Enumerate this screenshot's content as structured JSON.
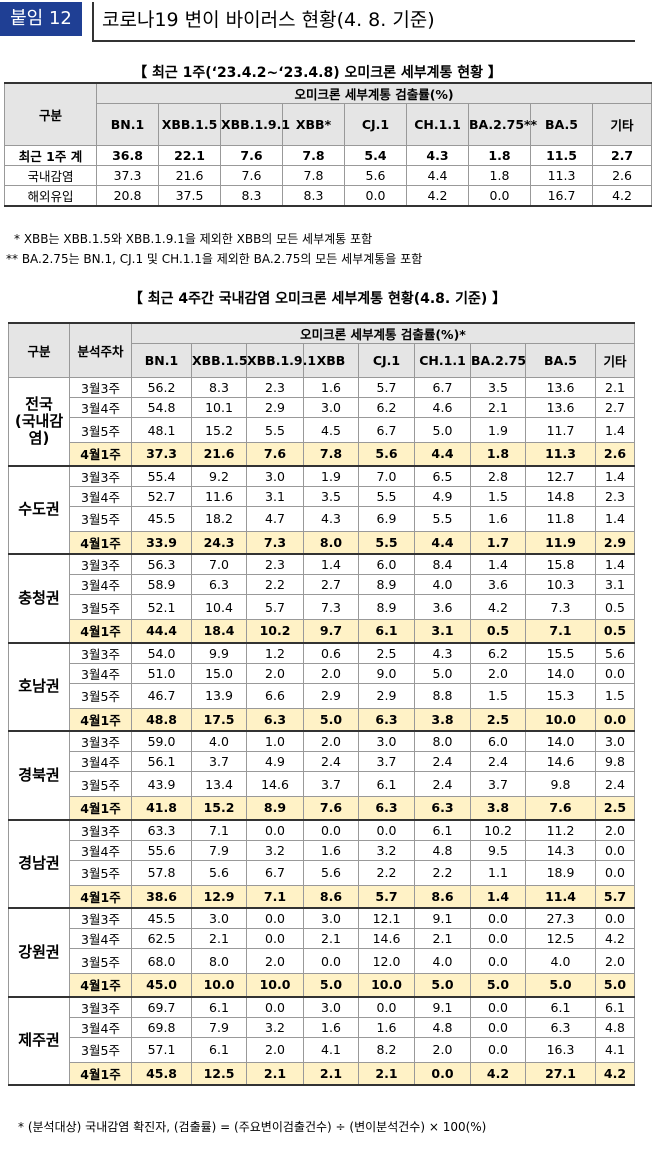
{
  "header": {
    "badge": "붙임 12",
    "title": "코로나19 변이 바이러스 현황(4. 8. 기준)"
  },
  "table1": {
    "caption": "【 최근 1주(‘23.4.2~‘23.4.8) 오미크론 세부계통 현황 】",
    "corner": "구분",
    "group_header": "오미크론 세부계통 검출률(%)",
    "columns": [
      "BN.1",
      "XBB.1.5",
      "XBB.1.9.1",
      "XBB*",
      "CJ.1",
      "CH.1.1",
      "BA.2.75**",
      "BA.5",
      "기타"
    ],
    "rows": [
      {
        "label": "최근 1주 계",
        "values": [
          "36.8",
          "22.1",
          "7.6",
          "7.8",
          "5.4",
          "4.3",
          "1.8",
          "11.5",
          "2.7"
        ]
      },
      {
        "label": "국내감염",
        "values": [
          "37.3",
          "21.6",
          "7.6",
          "7.8",
          "5.6",
          "4.4",
          "1.8",
          "11.3",
          "2.6"
        ]
      },
      {
        "label": "해외유입",
        "values": [
          "20.8",
          "37.5",
          "8.3",
          "8.3",
          "0.0",
          "4.2",
          "0.0",
          "16.7",
          "4.2"
        ]
      }
    ]
  },
  "notes": [
    " * XBB는 XBB.1.5와 XBB.1.9.1을 제외한 XBB의 모든 세부계통 포함",
    "** BA.2.75는 BN.1, CJ.1 및 CH.1.1을 제외한 BA.2.75의 모든 세부계통을 포함"
  ],
  "table2": {
    "caption": "【 최근 4주간 국내감염 오미크론 세부계통 현황(4.8. 기준) 】",
    "corner": "구분",
    "week_header": "분석주차",
    "group_header": "오미크론 세부계통 검출률(%)*",
    "columns": [
      "BN.1",
      "XBB.1.5",
      "XBB.1.9.1",
      "XBB",
      "CJ.1",
      "CH.1.1",
      "BA.2.75",
      "BA.5",
      "기타"
    ],
    "regions": [
      {
        "name": "전국\n(국내감염)",
        "weeks": [
          {
            "week": "3월3주",
            "values": [
              "56.2",
              "8.3",
              "2.3",
              "1.6",
              "5.7",
              "6.7",
              "3.5",
              "13.6",
              "2.1"
            ]
          },
          {
            "week": "3월4주",
            "values": [
              "54.8",
              "10.1",
              "2.9",
              "3.0",
              "6.2",
              "4.6",
              "2.1",
              "13.6",
              "2.7"
            ]
          },
          {
            "week": "3월5주",
            "values": [
              "48.1",
              "15.2",
              "5.5",
              "4.5",
              "6.7",
              "5.0",
              "1.9",
              "11.7",
              "1.4"
            ]
          },
          {
            "week": "4월1주",
            "values": [
              "37.3",
              "21.6",
              "7.6",
              "7.8",
              "5.6",
              "4.4",
              "1.8",
              "11.3",
              "2.6"
            ]
          }
        ]
      },
      {
        "name": "수도권",
        "weeks": [
          {
            "week": "3월3주",
            "values": [
              "55.4",
              "9.2",
              "3.0",
              "1.9",
              "7.0",
              "6.5",
              "2.8",
              "12.7",
              "1.4"
            ]
          },
          {
            "week": "3월4주",
            "values": [
              "52.7",
              "11.6",
              "3.1",
              "3.5",
              "5.5",
              "4.9",
              "1.5",
              "14.8",
              "2.3"
            ]
          },
          {
            "week": "3월5주",
            "values": [
              "45.5",
              "18.2",
              "4.7",
              "4.3",
              "6.9",
              "5.5",
              "1.6",
              "11.8",
              "1.4"
            ]
          },
          {
            "week": "4월1주",
            "values": [
              "33.9",
              "24.3",
              "7.3",
              "8.0",
              "5.5",
              "4.4",
              "1.7",
              "11.9",
              "2.9"
            ]
          }
        ]
      },
      {
        "name": "충청권",
        "weeks": [
          {
            "week": "3월3주",
            "values": [
              "56.3",
              "7.0",
              "2.3",
              "1.4",
              "6.0",
              "8.4",
              "1.4",
              "15.8",
              "1.4"
            ]
          },
          {
            "week": "3월4주",
            "values": [
              "58.9",
              "6.3",
              "2.2",
              "2.7",
              "8.9",
              "4.0",
              "3.6",
              "10.3",
              "3.1"
            ]
          },
          {
            "week": "3월5주",
            "values": [
              "52.1",
              "10.4",
              "5.7",
              "7.3",
              "8.9",
              "3.6",
              "4.2",
              "7.3",
              "0.5"
            ]
          },
          {
            "week": "4월1주",
            "values": [
              "44.4",
              "18.4",
              "10.2",
              "9.7",
              "6.1",
              "3.1",
              "0.5",
              "7.1",
              "0.5"
            ]
          }
        ]
      },
      {
        "name": "호남권",
        "weeks": [
          {
            "week": "3월3주",
            "values": [
              "54.0",
              "9.9",
              "1.2",
              "0.6",
              "2.5",
              "4.3",
              "6.2",
              "15.5",
              "5.6"
            ]
          },
          {
            "week": "3월4주",
            "values": [
              "51.0",
              "15.0",
              "2.0",
              "2.0",
              "9.0",
              "5.0",
              "2.0",
              "14.0",
              "0.0"
            ]
          },
          {
            "week": "3월5주",
            "values": [
              "46.7",
              "13.9",
              "6.6",
              "2.9",
              "2.9",
              "8.8",
              "1.5",
              "15.3",
              "1.5"
            ]
          },
          {
            "week": "4월1주",
            "values": [
              "48.8",
              "17.5",
              "6.3",
              "5.0",
              "6.3",
              "3.8",
              "2.5",
              "10.0",
              "0.0"
            ]
          }
        ]
      },
      {
        "name": "경북권",
        "weeks": [
          {
            "week": "3월3주",
            "values": [
              "59.0",
              "4.0",
              "1.0",
              "2.0",
              "3.0",
              "8.0",
              "6.0",
              "14.0",
              "3.0"
            ]
          },
          {
            "week": "3월4주",
            "values": [
              "56.1",
              "3.7",
              "4.9",
              "2.4",
              "3.7",
              "2.4",
              "2.4",
              "14.6",
              "9.8"
            ]
          },
          {
            "week": "3월5주",
            "values": [
              "43.9",
              "13.4",
              "14.6",
              "3.7",
              "6.1",
              "2.4",
              "3.7",
              "9.8",
              "2.4"
            ]
          },
          {
            "week": "4월1주",
            "values": [
              "41.8",
              "15.2",
              "8.9",
              "7.6",
              "6.3",
              "6.3",
              "3.8",
              "7.6",
              "2.5"
            ]
          }
        ]
      },
      {
        "name": "경남권",
        "weeks": [
          {
            "week": "3월3주",
            "values": [
              "63.3",
              "7.1",
              "0.0",
              "0.0",
              "0.0",
              "6.1",
              "10.2",
              "11.2",
              "2.0"
            ]
          },
          {
            "week": "3월4주",
            "values": [
              "55.6",
              "7.9",
              "3.2",
              "1.6",
              "3.2",
              "4.8",
              "9.5",
              "14.3",
              "0.0"
            ]
          },
          {
            "week": "3월5주",
            "values": [
              "57.8",
              "5.6",
              "6.7",
              "5.6",
              "2.2",
              "2.2",
              "1.1",
              "18.9",
              "0.0"
            ]
          },
          {
            "week": "4월1주",
            "values": [
              "38.6",
              "12.9",
              "7.1",
              "8.6",
              "5.7",
              "8.6",
              "1.4",
              "11.4",
              "5.7"
            ]
          }
        ]
      },
      {
        "name": "강원권",
        "weeks": [
          {
            "week": "3월3주",
            "values": [
              "45.5",
              "3.0",
              "0.0",
              "3.0",
              "12.1",
              "9.1",
              "0.0",
              "27.3",
              "0.0"
            ]
          },
          {
            "week": "3월4주",
            "values": [
              "62.5",
              "2.1",
              "0.0",
              "2.1",
              "14.6",
              "2.1",
              "0.0",
              "12.5",
              "4.2"
            ]
          },
          {
            "week": "3월5주",
            "values": [
              "68.0",
              "8.0",
              "2.0",
              "0.0",
              "12.0",
              "4.0",
              "0.0",
              "4.0",
              "2.0"
            ]
          },
          {
            "week": "4월1주",
            "values": [
              "45.0",
              "10.0",
              "10.0",
              "5.0",
              "10.0",
              "5.0",
              "5.0",
              "5.0",
              "5.0"
            ]
          }
        ]
      },
      {
        "name": "제주권",
        "weeks": [
          {
            "week": "3월3주",
            "values": [
              "69.7",
              "6.1",
              "0.0",
              "3.0",
              "0.0",
              "9.1",
              "0.0",
              "6.1",
              "6.1"
            ]
          },
          {
            "week": "3월4주",
            "values": [
              "69.8",
              "7.9",
              "3.2",
              "1.6",
              "1.6",
              "4.8",
              "0.0",
              "6.3",
              "4.8"
            ]
          },
          {
            "week": "3월5주",
            "values": [
              "57.1",
              "6.1",
              "2.0",
              "4.1",
              "8.2",
              "2.0",
              "0.0",
              "16.3",
              "4.1"
            ]
          },
          {
            "week": "4월1주",
            "values": [
              "45.8",
              "12.5",
              "2.1",
              "2.1",
              "2.1",
              "0.0",
              "4.2",
              "27.1",
              "4.2"
            ]
          }
        ]
      }
    ]
  },
  "footnote": "* (분석대상) 국내감염 확진자, (검출률) = (주요변이검출건수) ÷ (변이분석건수) × 100(%)"
}
